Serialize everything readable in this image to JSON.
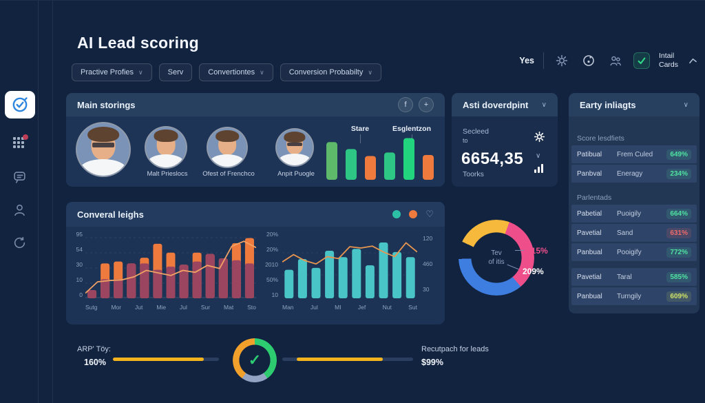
{
  "app": {
    "title": "AI Lead scoring"
  },
  "topbar": {
    "yes": "Yes",
    "install_line1": "Intail",
    "install_line2": "Cards"
  },
  "filters": [
    {
      "label": "Practive Profies",
      "chevron": "∨"
    },
    {
      "label": "Serv",
      "chevron": ""
    },
    {
      "label": "Convertiontes",
      "chevron": "∨"
    },
    {
      "label": "Conversion Probabilty",
      "chevron": "∨"
    }
  ],
  "main_storings": {
    "title": "Main storings",
    "fab_f": "f",
    "fab_plus": "+",
    "members": [
      "Malt Prieslocs",
      "Ofest of Frenchco",
      "Anpit Puogle"
    ]
  },
  "asti": {
    "title": "Asti doverdpint",
    "line1": "Secleed",
    "line2": "to",
    "value": "6654,35",
    "unit": "Toorks"
  },
  "insights": {
    "title": "Earty inliagts",
    "section1": "Score lesdfiets",
    "section2": "Parlentads",
    "rows": [
      {
        "name": "Patibual",
        "detail": "Frem Culed",
        "value": "649%",
        "tone": "green"
      },
      {
        "name": "Panbval",
        "detail": "Eneragy",
        "value": "234%",
        "tone": "green"
      },
      {
        "name": "Pabetial",
        "detail": "Puoigily",
        "value": "664%",
        "tone": "green"
      },
      {
        "name": "Pavetial",
        "detail": "Sand",
        "value": "631%",
        "tone": "red"
      },
      {
        "name": "Panbual",
        "detail": "Pooigify",
        "value": "772%",
        "tone": "green"
      },
      {
        "name": "Pavetial",
        "detail": "Taral",
        "value": "585%",
        "tone": "green"
      },
      {
        "name": "Panbual",
        "detail": "Turngily",
        "value": "609%",
        "tone": "lime"
      }
    ]
  },
  "converal": {
    "title": "Converal leighs",
    "legend_colors": [
      "#2cbfa6",
      "#ee7a3e"
    ],
    "heart": "♡"
  },
  "chart_data": [
    {
      "id": "member-scores",
      "type": "bar",
      "labels": [
        "Stare",
        "Esglentzon"
      ],
      "values": [
        76,
        62,
        48,
        55,
        84,
        50
      ],
      "colors": [
        "#5eb96b",
        "#2dc684",
        "#ee7a3e",
        "#2dc684",
        "#22d47d",
        "#ee7a3e"
      ]
    },
    {
      "id": "conversion-area",
      "type": "bar+line",
      "x_labels": [
        "Sutg",
        "Mor",
        "Jut",
        "Mie",
        "Jul",
        "Sur",
        "Mat",
        "Sto"
      ],
      "y_labels": [
        "95",
        "54",
        "30",
        "10",
        "0"
      ],
      "bars": [
        13,
        55,
        58,
        55,
        64,
        86,
        72,
        53,
        72,
        70,
        63,
        87,
        95
      ],
      "split": [
        13,
        30,
        30,
        55,
        55,
        45,
        50,
        53,
        58,
        70,
        63,
        60,
        55
      ],
      "line": [
        8,
        26,
        28,
        29,
        34,
        44,
        40,
        36,
        44,
        41,
        52,
        47,
        82,
        90,
        80
      ],
      "bar_top_color": "#ee7a3e",
      "bar_bottom_color": "#9c4560",
      "line_color": "#f2a263",
      "ylim": [
        0,
        100
      ]
    },
    {
      "id": "conversion-bars",
      "type": "bar+line",
      "x_labels": [
        "Man",
        "Jul",
        "MI",
        "Jef",
        "Nut",
        "Sut"
      ],
      "y_labels_left": [
        "20%",
        "20%",
        "2010",
        "50%",
        "10"
      ],
      "y_labels_right": [
        "120",
        "460",
        "30"
      ],
      "bars": [
        45,
        62,
        48,
        75,
        65,
        78,
        52,
        88,
        73,
        65
      ],
      "line": [
        55,
        66,
        57,
        52,
        63,
        60,
        78,
        76,
        79,
        70,
        63,
        84,
        70
      ],
      "bar_color": "#49c5c7",
      "line_color": "#e8954f",
      "ylim": [
        0,
        100
      ]
    },
    {
      "id": "lead-donut",
      "type": "pie",
      "start_deg": 295,
      "segments": [
        {
          "label": "yellow",
          "deg": 85,
          "color": "#f6b93b"
        },
        {
          "label": "pink",
          "deg": 120,
          "color": "#ee4f8a"
        },
        {
          "label": "blue",
          "deg": 128,
          "color": "#3d7ee0"
        },
        {
          "label": "gap",
          "deg": 27,
          "color": "transparent"
        }
      ],
      "center_text_1": "Tev",
      "center_text_2": "of itis",
      "callouts": [
        {
          "text": "415%",
          "color": "#ee4f8a"
        },
        {
          "text": "209%",
          "color": "#ffffff"
        }
      ]
    }
  ],
  "bottom": {
    "left_label": "ARP' Töy:",
    "left_value": "160%",
    "right_label": "Recutpach for leads",
    "right_value": "$99%",
    "progress1": {
      "offset_pct": 0,
      "fill_pct": 86
    },
    "progress2": {
      "offset_pct": 11,
      "fill_pct": 66
    },
    "ring": {
      "check": "✓",
      "start_deg": 0,
      "segments": [
        {
          "label": "green",
          "deg": 145,
          "color": "#2ecc71"
        },
        {
          "label": "gray",
          "deg": 70,
          "color": "#93a3c3"
        },
        {
          "label": "orange",
          "deg": 145,
          "color": "#f1a02c"
        }
      ]
    }
  }
}
